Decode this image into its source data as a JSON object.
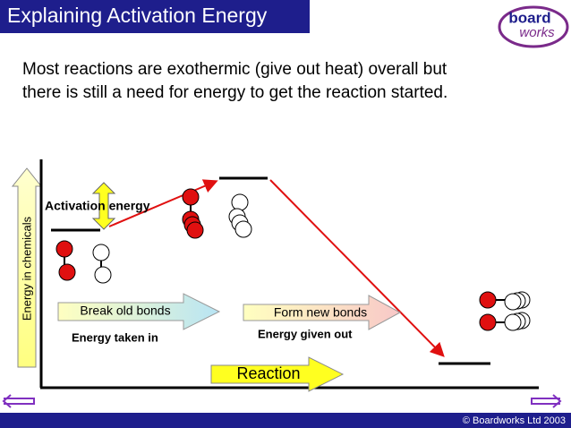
{
  "header": {
    "title": "Explaining Activation Energy",
    "logo_top": "board",
    "logo_bottom": "works"
  },
  "intro": {
    "lines": [
      "Most reactions are exothermic (give out heat)  overall but",
      "there is still a need for energy to get the reaction started."
    ]
  },
  "diagram": {
    "y_axis_label": "Energy in chemicals",
    "activation_label": "Activation energy",
    "break_arrow": "Break old bonds",
    "form_arrow": "Form new bonds",
    "taken_in": "Energy taken in",
    "given_out": "Energy given out",
    "x_axis_label": "Reaction"
  },
  "footer": {
    "copyright": "© Boardworks Ltd 2003"
  }
}
